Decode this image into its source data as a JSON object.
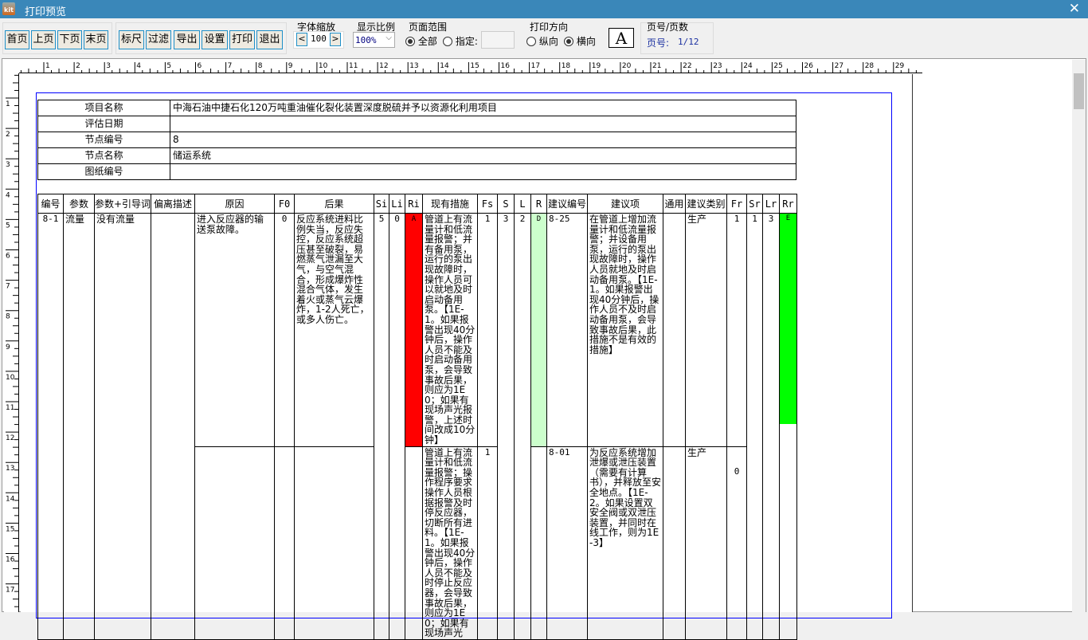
{
  "window": {
    "title": "打印预览",
    "close": "✕",
    "app_icon": "kit"
  },
  "toolbar": {
    "nav": [
      "首页",
      "上页",
      "下页",
      "末页"
    ],
    "actions": [
      "标尺",
      "过滤",
      "导出",
      "设置",
      "打印",
      "退出"
    ],
    "font_scale": {
      "label": "字体缩放",
      "value": "100",
      "dec": "<",
      "inc": ">"
    },
    "zoom": {
      "label": "显示比例",
      "value": "100%"
    },
    "range": {
      "label": "页面范围",
      "all": "全部",
      "specify": "指定:",
      "selected": "all",
      "specify_value": ""
    },
    "orientation": {
      "label": "打印方向",
      "portrait": "纵向",
      "landscape": "横向",
      "selected": "landscape"
    },
    "font_icon": "A",
    "page": {
      "label": "页号/页数",
      "prefix": "页号:",
      "value": "1/12"
    }
  },
  "info": [
    {
      "k": "项目名称",
      "v": "中海石油中捷石化120万吨重油催化裂化装置深度脱硫并予以资源化利用项目"
    },
    {
      "k": "评估日期",
      "v": ""
    },
    {
      "k": "节点编号",
      "v": "8"
    },
    {
      "k": "节点名称",
      "v": "储运系统"
    },
    {
      "k": "图纸编号",
      "v": ""
    }
  ],
  "columns": [
    "编号",
    "参数",
    "参数+引导词",
    "偏离描述",
    "原因",
    "F0",
    "后果",
    "Si",
    "Li",
    "Ri",
    "现有措施",
    "Fs",
    "S",
    "L",
    "R",
    "建议编号",
    "建议项",
    "通用",
    "建议类别",
    "Fr",
    "Sr",
    "Lr",
    "Rr"
  ],
  "row": {
    "id": "8-1",
    "param": "流量",
    "guide": "没有流量",
    "dev": "",
    "si": "5",
    "li": "0",
    "s": "3",
    "l": "2",
    "sr": "1",
    "lr": "3",
    "rr": "E",
    "sub": [
      {
        "cause": "进入反应器的输送泵故障。",
        "f0": "0",
        "consequence": "反应系统进料比例失当，反应失控，反应系统超压甚至破裂，易燃蒸气泄漏至大气，与空气混合，形成爆炸性混合气体，发生着火或蒸气云爆炸，1-2人死亡，或多人伤亡。",
        "ri": "A",
        "measure": "管道上有流量计和低流量报警；并有备用泵，运行的泵出现故障时，操作人员可以就地及时启动备用泵。【1E-1。如果报警出现40分钟后，操作人员不能及时启动备用泵，会导致事故后果，则应为1E0；如果有现场声光报警，上述时间改成10分钟】",
        "fs": "1",
        "r": "D",
        "sug_id": "8-25",
        "sug": "在管道上增加流量计和低流量报警；并设备用泵，运行的泵出现故障时，操作人员就地及时启动备用泵。【1E-1。如果报警出现40分钟后，操作人员不及时启动备用泵，会导致事故后果，此措施不是有效的措施】",
        "common": "",
        "type": "生产",
        "fr": "1"
      },
      {
        "cause": "",
        "f0": "",
        "consequence": "",
        "ri": "",
        "measure": "管道上有流量计和低流量报警；操作程序要求操作人员根据报警及时停反应器，切断所有进料。【1E-1。如果报警出现40分钟后，操作人员不能及时停止反应器，会导致事故后果，则应为1E0；如果有现场声光",
        "fs": "1",
        "r": "",
        "sug_id": "8-01",
        "sug": "为反应系统增加泄爆或泄压装置（需要有计算书），并释放至安全地点。【1E-2。如果设置双安全阀或双泄压装置，并同时在线工作，则为1E-3】",
        "common": "",
        "type": "生产",
        "fr": "0"
      }
    ]
  },
  "colors": {
    "ri_A": "#ff0000",
    "r_D": "#ccffcc",
    "rr_E": "#00ff00",
    "title_bar": "#3a87b9"
  }
}
